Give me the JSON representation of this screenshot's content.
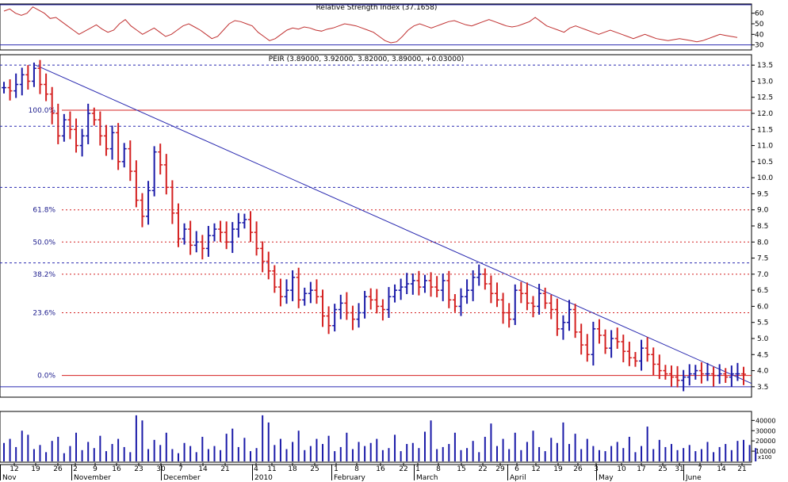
{
  "colors": {
    "up": "#1a1aa8",
    "down": "#d42020",
    "trendline": "#2a2ab0",
    "fib": "#d42020",
    "level_blue": "#2a2ab0",
    "rsi": "#c03030",
    "volume": "#1a1aa8",
    "frame": "#000000"
  },
  "chart_data": [
    {
      "type": "line",
      "title": "Relative Strength Index (37.1658)",
      "ylim": [
        26,
        68
      ],
      "y_ticks": [
        "30",
        "40",
        "50",
        "60"
      ],
      "reference_lines": [
        30,
        70
      ],
      "values": [
        62,
        64,
        60,
        58,
        60,
        66,
        63,
        60,
        55,
        56,
        52,
        48,
        44,
        40,
        43,
        46,
        49,
        45,
        42,
        44,
        50,
        54,
        48,
        44,
        40,
        43,
        46,
        42,
        38,
        40,
        44,
        48,
        50,
        47,
        44,
        40,
        36,
        38,
        44,
        50,
        53,
        52,
        50,
        48,
        42,
        38,
        34,
        36,
        40,
        44,
        46,
        45,
        47,
        46,
        44,
        43,
        45,
        46,
        48,
        50,
        49,
        48,
        46,
        44,
        42,
        38,
        34,
        32,
        33,
        38,
        44,
        48,
        50,
        48,
        46,
        48,
        50,
        52,
        53,
        51,
        49,
        48,
        50,
        52,
        54,
        52,
        50,
        48,
        47,
        48,
        50,
        52,
        56,
        52,
        48,
        46,
        44,
        42,
        46,
        48,
        46,
        44,
        42,
        40,
        42,
        44,
        42,
        40,
        38,
        36,
        38,
        40,
        38,
        36,
        35,
        34,
        35,
        36,
        35,
        34,
        33,
        34,
        36,
        38,
        40,
        39,
        38,
        37
      ]
    },
    {
      "type": "candlestick",
      "title": "PEIR (3.89000, 3.92000, 3.82000, 3.89000, +0.03000)",
      "ylim": [
        3.2,
        13.8
      ],
      "y_ticks": [
        "3.5",
        "4.0",
        "4.5",
        "5.0",
        "5.5",
        "6.0",
        "6.5",
        "7.0",
        "7.5",
        "8.0",
        "8.5",
        "9.0",
        "9.5",
        "10.0",
        "10.5",
        "11.0",
        "11.5",
        "12.0",
        "12.5",
        "13.0",
        "13.5"
      ],
      "x_tick_labels": [
        "12",
        "19",
        "26",
        "2",
        "9",
        "16",
        "23",
        "30",
        "7",
        "14",
        "21",
        "4",
        "11",
        "18",
        "25",
        "1",
        "8",
        "16",
        "22",
        "1",
        "8",
        "15",
        "22",
        "29",
        "6",
        "12",
        "19",
        "26",
        "3",
        "10",
        "17",
        "25",
        "31",
        "7",
        "14",
        "21"
      ],
      "month_labels": [
        "Nov",
        "November",
        "December",
        "2010",
        "February",
        "March",
        "April",
        "May",
        "June"
      ],
      "fib_levels": [
        {
          "label": "100.0%",
          "value": 12.1
        },
        {
          "label": "61.8%",
          "value": 9.0
        },
        {
          "label": "50.0%",
          "value": 8.0
        },
        {
          "label": "38.2%",
          "value": 7.0
        },
        {
          "label": "23.6%",
          "value": 5.8
        },
        {
          "label": "0.0%",
          "value": 3.85
        }
      ],
      "horizontal_levels": [
        13.5,
        11.6,
        9.7,
        7.35,
        3.5
      ],
      "trendline": [
        {
          "x": 0,
          "y": 13.5
        },
        {
          "x": 128,
          "y": 3.8
        }
      ],
      "closes": [
        12.8,
        12.7,
        12.9,
        13.2,
        13.0,
        13.4,
        12.9,
        12.6,
        12.0,
        11.3,
        11.8,
        11.5,
        11.0,
        11.3,
        12.0,
        11.8,
        11.3,
        10.9,
        11.4,
        10.5,
        10.9,
        10.2,
        9.3,
        8.8,
        9.6,
        10.8,
        10.4,
        9.7,
        8.9,
        8.1,
        8.4,
        7.9,
        8.0,
        7.8,
        8.2,
        8.4,
        8.3,
        8.0,
        8.4,
        8.6,
        8.7,
        8.3,
        7.8,
        7.4,
        7.1,
        6.6,
        6.3,
        6.5,
        6.9,
        6.2,
        6.4,
        6.5,
        6.3,
        5.7,
        5.4,
        5.9,
        6.1,
        5.8,
        5.6,
        5.8,
        6.3,
        6.2,
        6.0,
        5.9,
        6.3,
        6.5,
        6.6,
        6.7,
        6.8,
        6.6,
        6.8,
        6.6,
        6.5,
        6.8,
        6.2,
        6.0,
        6.3,
        6.5,
        6.9,
        7.0,
        6.7,
        6.4,
        6.2,
        5.8,
        5.6,
        6.5,
        6.4,
        6.1,
        6.0,
        6.4,
        6.1,
        5.9,
        5.3,
        5.5,
        5.9,
        5.2,
        4.8,
        4.5,
        5.3,
        5.1,
        4.7,
        5.0,
        4.9,
        4.6,
        4.4,
        4.3,
        4.7,
        4.5,
        4.2,
        4.0,
        3.9,
        3.8,
        3.7,
        3.8,
        3.9,
        4.0,
        3.9,
        3.9,
        3.85,
        3.9,
        3.8,
        3.9,
        3.9,
        3.89
      ],
      "volume_ticks": [
        "10000",
        "20000",
        "30000",
        "40000"
      ],
      "volume_unit": "x100",
      "volume_ylim": [
        0,
        48000
      ],
      "volumes": [
        18000,
        22000,
        14000,
        30000,
        26000,
        12000,
        16000,
        9000,
        20000,
        24000,
        8000,
        15000,
        28000,
        11000,
        19000,
        13000,
        25000,
        10000,
        17000,
        22000,
        14000,
        9000,
        45000,
        40000,
        12000,
        21000,
        16000,
        28000,
        12000,
        8000,
        18000,
        15000,
        9000,
        24000,
        12000,
        15000,
        11000,
        27000,
        32000,
        14000,
        23000,
        10000,
        13000,
        45000,
        38000,
        16000,
        22000,
        12000,
        19000,
        30000,
        11000,
        15000,
        22000,
        17000,
        25000,
        10000,
        14000,
        28000,
        12000,
        19000,
        15000,
        18000,
        22000,
        11000,
        13000,
        26000,
        10000,
        17000,
        18000,
        13000,
        29000,
        40000,
        12000,
        14000,
        17000,
        28000,
        11000,
        13000,
        20000,
        9000,
        24000,
        37000,
        15000,
        22000,
        12000,
        28000,
        11000,
        19000,
        30000,
        14000,
        10000,
        23000,
        18000,
        38000,
        17000,
        27000,
        12000,
        22000,
        15000,
        11000,
        10000,
        15000,
        19000,
        13000,
        24000,
        9000,
        15000,
        34000,
        12000,
        21000,
        14000,
        17000,
        11000,
        13000,
        16000,
        10000,
        12000,
        19000,
        9000,
        14000,
        17000,
        11000,
        20000,
        21000,
        16000,
        13000
      ]
    }
  ]
}
